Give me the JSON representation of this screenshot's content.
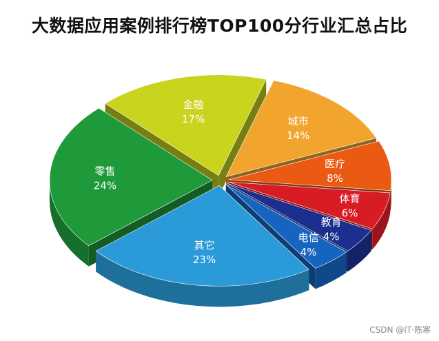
{
  "title": "大数据应用案例排行榜TOP100分行业汇总占比",
  "watermark": "CSDN @IT·陈寒",
  "chart_data": {
    "type": "pie",
    "title": "大数据应用案例排行榜TOP100分行业汇总占比",
    "slices": [
      {
        "label": "城市",
        "value": 14,
        "pct": "14%",
        "color": "#f2a52e"
      },
      {
        "label": "医疗",
        "value": 8,
        "pct": "8%",
        "color": "#ea5a12"
      },
      {
        "label": "体育",
        "value": 6,
        "pct": "6%",
        "color": "#d81c25"
      },
      {
        "label": "教育",
        "value": 4,
        "pct": "4%",
        "color": "#1c2f8f"
      },
      {
        "label": "电信",
        "value": 4,
        "pct": "4%",
        "color": "#1565c0"
      },
      {
        "label": "其它",
        "value": 23,
        "pct": "23%",
        "color": "#2a9ad9"
      },
      {
        "label": "零售",
        "value": 24,
        "pct": "24%",
        "color": "#1f9a3a"
      },
      {
        "label": "金融",
        "value": 17,
        "pct": "17%",
        "color": "#c8d41e"
      }
    ]
  }
}
